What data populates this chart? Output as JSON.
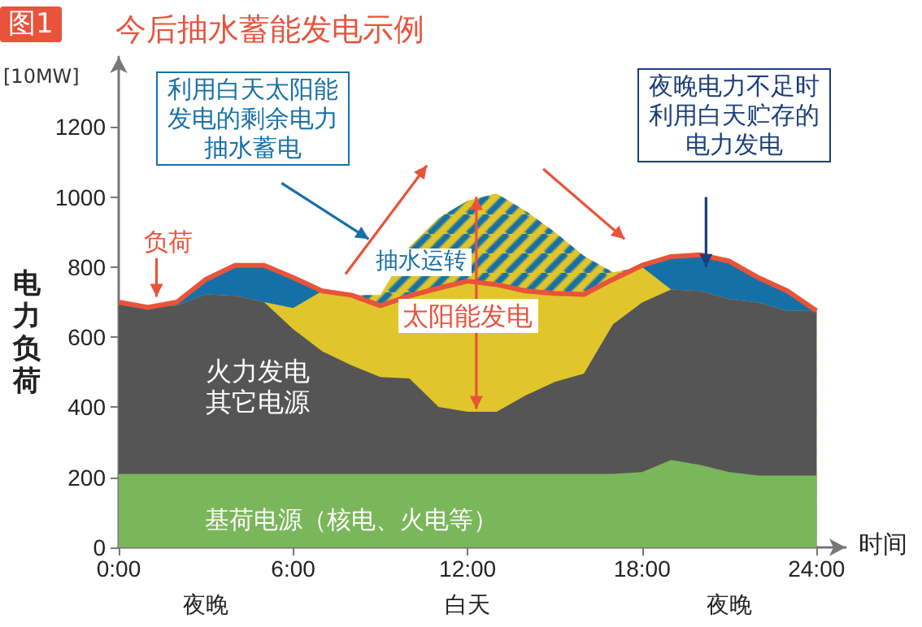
{
  "chart_data": {
    "type": "area",
    "title": "今后抽水蓄能发电示例",
    "xlabel": "时间",
    "ylabel": "电力负荷",
    "stacked": true,
    "legend": false,
    "grid": false,
    "marker": "none",
    "annotations": [
      "图1",
      "[10MW]",
      "利用白天太阳能发电的剩余电力抽水蓄电",
      "夜晚电力不足时利用白天贮存的电力发电",
      "夜晚",
      "白天",
      "夜晚"
    ],
    "x": [
      0,
      1,
      2,
      3,
      4,
      5,
      6,
      7,
      8,
      9,
      10,
      11,
      12,
      13,
      14,
      15,
      16,
      17,
      18,
      19,
      20,
      21,
      22,
      23,
      24
    ],
    "xlim": [
      0,
      25
    ],
    "xticks": [
      {
        "value": 0,
        "label": "0:00"
      },
      {
        "value": 6,
        "label": "6:00"
      },
      {
        "value": 12,
        "label": "12:00"
      },
      {
        "value": 18,
        "label": "18:00"
      },
      {
        "value": 24,
        "label": "24:00"
      }
    ],
    "ylim": [
      0,
      1400
    ],
    "yticks": [
      0,
      200,
      400,
      600,
      800,
      {
        "value": 1000,
        "label": "1000"
      },
      {
        "value": 1200,
        "label": "1200"
      }
    ],
    "series": [
      {
        "name": "基荷电源（核电、火电等）",
        "color": "#7ab65a",
        "values": [
          210,
          210,
          210,
          210,
          210,
          210,
          210,
          210,
          210,
          210,
          210,
          210,
          210,
          210,
          210,
          210,
          210,
          210,
          215,
          250,
          235,
          215,
          205,
          205,
          205
        ]
      },
      {
        "name": "火力发电其它电源",
        "color": "#555555",
        "values": [
          490,
          475,
          480,
          512,
          508,
          490,
          413,
          350,
          310,
          276,
          272,
          191,
          177,
          177,
          224,
          262,
          286,
          427,
          484,
          486,
          497,
          493,
          494,
          470,
          470
        ]
      },
      {
        "name": "太阳能发电",
        "color": "#e0c62a",
        "values": [
          0,
          0,
          0,
          0,
          0,
          0,
          60,
          172,
          200,
          204,
          236,
          339,
          373,
          363,
          298,
          253,
          226,
          128,
          101,
          0,
          0,
          0,
          0,
          0,
          0
        ]
      },
      {
        "color": "#1670a8",
        "values": [
          0,
          0,
          10,
          43,
          87,
          105,
          87,
          0,
          0,
          0,
          0,
          0,
          0,
          0,
          0,
          0,
          0,
          0,
          0,
          94,
          103,
          109,
          71,
          57,
          0
        ]
      },
      {
        "name": "抽水运转",
        "color": "#1670a8",
        "values": [
          0,
          0,
          0,
          0,
          0,
          0,
          0,
          0,
          0,
          30,
          140,
          200,
          230,
          260,
          228,
          175,
          110,
          20,
          0,
          0,
          0,
          0,
          0,
          0,
          0
        ]
      },
      {
        "name": "负荷",
        "type": "line",
        "color": "#e8533a",
        "values": [
          700,
          685,
          700,
          765,
          805,
          805,
          770,
          732,
          720,
          690,
          718,
          740,
          760,
          750,
          732,
          725,
          722,
          765,
          805,
          830,
          835,
          817,
          770,
          732,
          675
        ]
      }
    ]
  }
}
